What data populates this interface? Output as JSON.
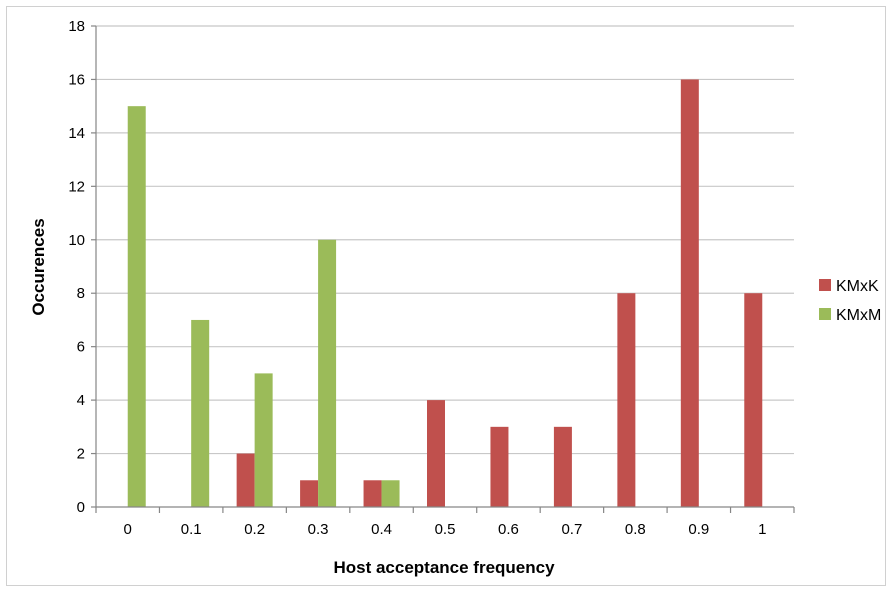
{
  "chart_data": {
    "type": "bar",
    "title": "",
    "xlabel": "Host acceptance frequency",
    "ylabel": "Occurences",
    "categories": [
      "0",
      "0.1",
      "0.2",
      "0.3",
      "0.4",
      "0.5",
      "0.6",
      "0.7",
      "0.8",
      "0.9",
      "1"
    ],
    "series": [
      {
        "name": "KMxK",
        "color": "#C0504D",
        "values": [
          0,
          0,
          2,
          1,
          1,
          4,
          3,
          3,
          8,
          16,
          8
        ]
      },
      {
        "name": "KMxM",
        "color": "#9BBB59",
        "values": [
          15,
          7,
          5,
          10,
          1,
          0,
          0,
          0,
          0,
          0,
          0
        ]
      }
    ],
    "ylim": [
      0,
      18
    ],
    "yticks": [
      0,
      2,
      4,
      6,
      8,
      10,
      12,
      14,
      16,
      18
    ],
    "grid": true,
    "legend_position": "right",
    "colors": {
      "grid": "#c8c8c8",
      "axis": "#868686"
    }
  }
}
